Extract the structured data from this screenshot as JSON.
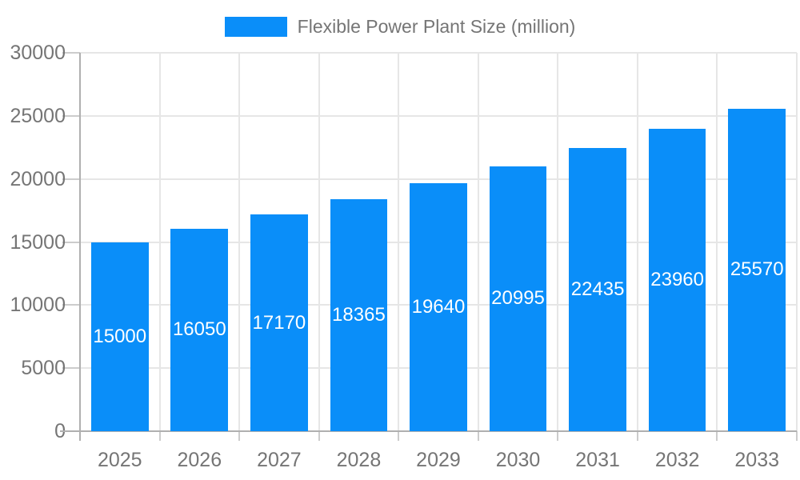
{
  "chart_data": {
    "type": "bar",
    "title": "Flexible Power Plant Size (million)",
    "legend": {
      "label": "Flexible Power Plant Size (million)",
      "position": "top"
    },
    "categories": [
      "2025",
      "2026",
      "2027",
      "2028",
      "2029",
      "2030",
      "2031",
      "2032",
      "2033"
    ],
    "series": [
      {
        "name": "Flexible Power Plant Size (million)",
        "values": [
          15000,
          16050,
          17170,
          18365,
          19640,
          20995,
          22435,
          23960,
          25570
        ]
      }
    ],
    "bar_value_labels": [
      "15000",
      "16050",
      "17170",
      "18365",
      "19640",
      "20995",
      "22435",
      "23960",
      "25570"
    ],
    "xlabel": "",
    "ylabel": "",
    "ylim": [
      0,
      30000
    ],
    "yticks": [
      0,
      5000,
      10000,
      15000,
      20000,
      25000,
      30000
    ],
    "ytick_labels": [
      "0",
      "5000",
      "10000",
      "15000",
      "20000",
      "25000",
      "30000"
    ],
    "grid": true,
    "value_label_position": "inside-center",
    "colors": {
      "bar": "#0a8ef9",
      "label_text": "#ffffff",
      "axis_text": "#757575",
      "gridline": "#e6e6e6",
      "tick": "#cccccc",
      "axis_line": "#b0b0b0",
      "background": "#ffffff"
    }
  }
}
